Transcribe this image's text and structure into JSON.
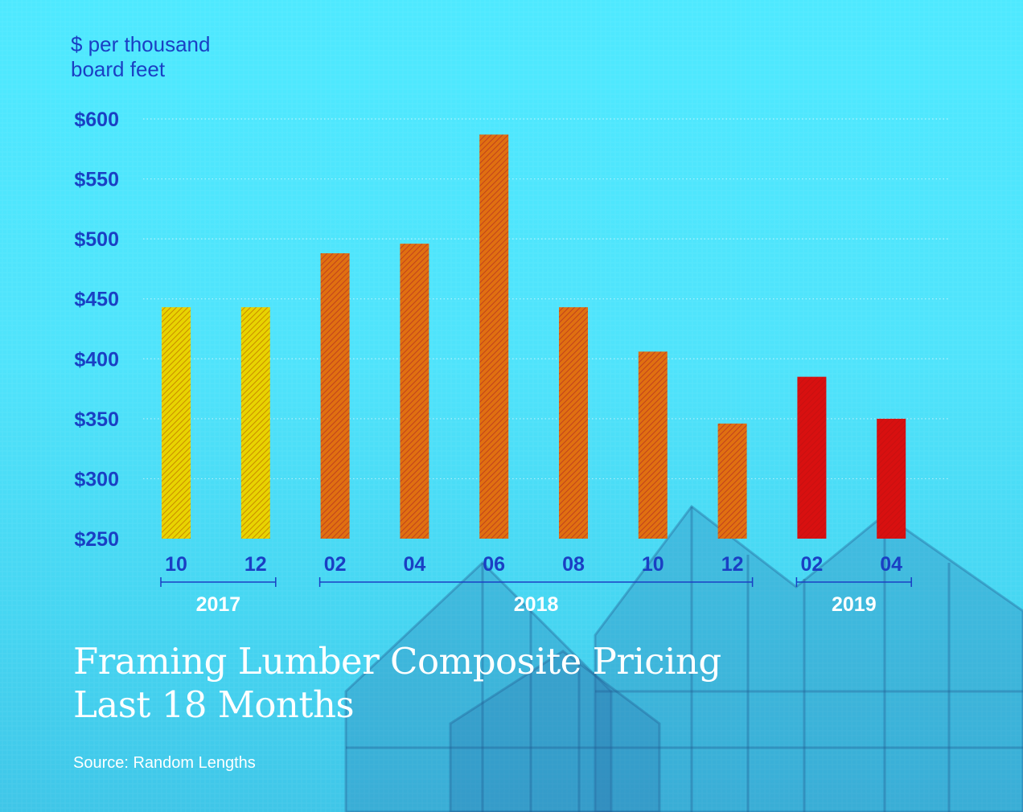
{
  "chart_data": {
    "type": "bar",
    "title": [
      "Framing Lumber Composite Pricing",
      "Last 18 Months"
    ],
    "ylabel": [
      "$ per thousand",
      "board feet"
    ],
    "source": "Source: Random Lengths",
    "ylim": [
      250,
      600
    ],
    "yticks": [
      {
        "value": 600,
        "label": "$600"
      },
      {
        "value": 550,
        "label": "$550"
      },
      {
        "value": 500,
        "label": "$500"
      },
      {
        "value": 450,
        "label": "$450"
      },
      {
        "value": 400,
        "label": "$400"
      },
      {
        "value": 350,
        "label": "$350"
      },
      {
        "value": 300,
        "label": "$300"
      },
      {
        "value": 250,
        "label": "$250"
      }
    ],
    "grid": true,
    "categories": [
      "10",
      "12",
      "02",
      "04",
      "06",
      "08",
      "10",
      "12",
      "02",
      "04"
    ],
    "values": [
      443,
      443,
      488,
      496,
      587,
      443,
      406,
      346,
      385,
      350
    ],
    "bar_colors": [
      "#e8d400",
      "#e8d400",
      "#e07010",
      "#e07010",
      "#e07010",
      "#e07010",
      "#e07010",
      "#e07010",
      "#d81010",
      "#d81010"
    ],
    "bar_hatch_colors": [
      "#c98a00",
      "#c98a00",
      "#c04020",
      "#c04020",
      "#c04020",
      "#c04020",
      "#c04020",
      "#c04020",
      "#c81010",
      "#c81010"
    ],
    "year_groups": [
      {
        "label": "2017",
        "from": 0,
        "to": 1
      },
      {
        "label": "2018",
        "from": 2,
        "to": 7
      },
      {
        "label": "2019",
        "from": 8,
        "to": 9
      }
    ],
    "text_color": "#1a3fc4",
    "title_color": "#ffffff"
  }
}
